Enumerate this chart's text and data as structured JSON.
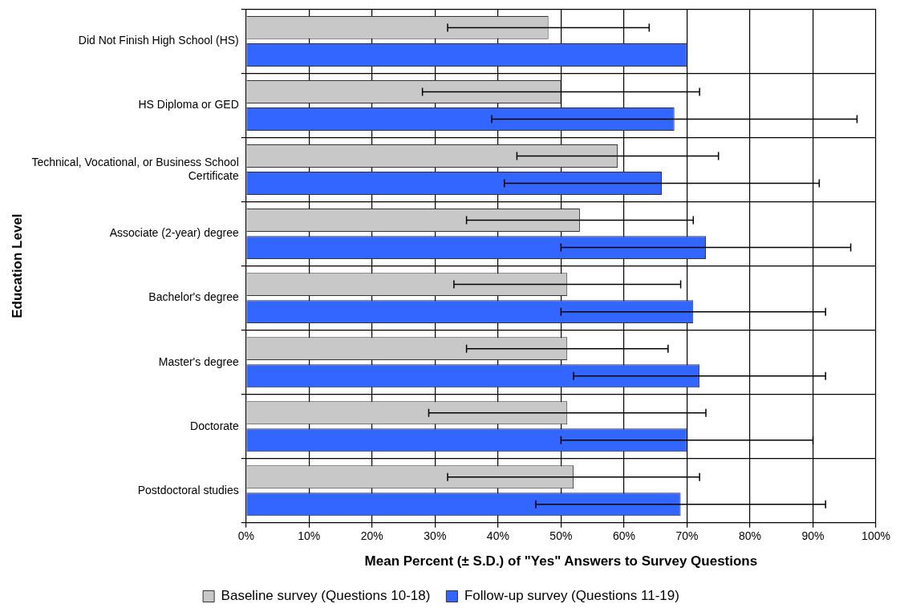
{
  "chart_data": {
    "type": "bar",
    "orientation": "horizontal",
    "xlabel": "Mean Percent (± S.D.) of \"Yes\" Answers to Survey Questions",
    "ylabel": "Education Level",
    "categories": [
      "Did Not Finish High School (HS)",
      "HS Diploma or GED",
      "Technical, Vocational, or Business School Certificate",
      "Associate (2-year) degree",
      "Bachelor's degree",
      "Master's degree",
      "Doctorate",
      "Postdoctoral studies"
    ],
    "series": [
      {
        "name": "Baseline survey (Questions 10-18)",
        "color": "#c8c8c8",
        "values": [
          48,
          50,
          59,
          53,
          51,
          51,
          51,
          52
        ],
        "errors": [
          [
            32,
            64
          ],
          [
            28,
            72
          ],
          [
            43,
            75
          ],
          [
            35,
            71
          ],
          [
            33,
            69
          ],
          [
            35,
            67
          ],
          [
            29,
            73
          ],
          [
            32,
            72
          ]
        ]
      },
      {
        "name": "Follow-up survey (Questions 11-19)",
        "color": "#3366ff",
        "values": [
          70,
          68,
          66,
          73,
          71,
          72,
          70,
          69
        ],
        "errors": [
          null,
          [
            39,
            97
          ],
          [
            41,
            91
          ],
          [
            50,
            96
          ],
          [
            50,
            92
          ],
          [
            52,
            92
          ],
          [
            50,
            90
          ],
          [
            46,
            92
          ]
        ]
      }
    ],
    "xlim": [
      0,
      100
    ],
    "xticks": [
      {
        "value": 0,
        "label": "0%"
      },
      {
        "value": 10,
        "label": "10%"
      },
      {
        "value": 20,
        "label": "20%"
      },
      {
        "value": 30,
        "label": "30%"
      },
      {
        "value": 40,
        "label": "40%"
      },
      {
        "value": 50,
        "label": "50%"
      },
      {
        "value": 60,
        "label": "60%"
      },
      {
        "value": 70,
        "label": "70%"
      },
      {
        "value": 80,
        "label": "80%"
      },
      {
        "value": 90,
        "label": "90%"
      },
      {
        "value": 100,
        "label": "100%"
      }
    ],
    "grid": true,
    "legend": "bottom"
  }
}
